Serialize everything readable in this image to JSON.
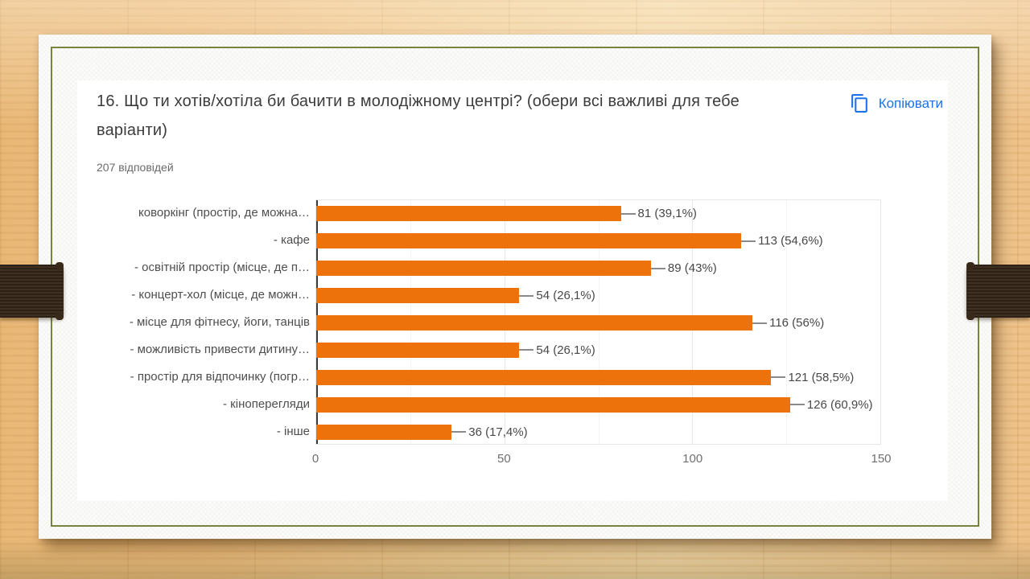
{
  "slide": {
    "background_style": "wood-planks",
    "wood_color": "#eec189",
    "strap_color": "#38291b",
    "card_border_color": "#77843e"
  },
  "form": {
    "title": "16. Що ти хотів/хотіла би бачити в молодіжному центрі? (обери всі важливі для тебе варіанти)",
    "responses": "207 відповідей",
    "copy_label": "Копіювати",
    "copy_color": "#1a73e8"
  },
  "chart_data": {
    "type": "bar",
    "orientation": "horizontal",
    "title": "16. Що ти хотів/хотіла би бачити в молодіжному центрі? (обери всі важливі для тебе варіанти)",
    "subtitle": "207 відповідей",
    "categories": [
      "коворкінг (простір, де можна…",
      "- кафе",
      "- освітній простір (місце, де п…",
      "- концерт-хол (місце, де можн…",
      "- місце для фітнесу, йоги, танців",
      "- можливість привести дитину…",
      "- простір для відпочинку (погр…",
      "- кіноперегляди",
      "- інше"
    ],
    "values": [
      81,
      113,
      89,
      54,
      116,
      54,
      121,
      126,
      36
    ],
    "value_labels": [
      "81 (39,1%)",
      "113 (54,6%)",
      "89 (43%)",
      "54 (26,1%)",
      "116 (56%)",
      "54 (26,1%)",
      "121 (58,5%)",
      "126 (60,9%)",
      "36 (17,4%)"
    ],
    "xticks": [
      "0",
      "50",
      "100",
      "150"
    ],
    "xlim": [
      0,
      150
    ],
    "bar_color": "#ED720C",
    "grid": true,
    "legend": false
  }
}
